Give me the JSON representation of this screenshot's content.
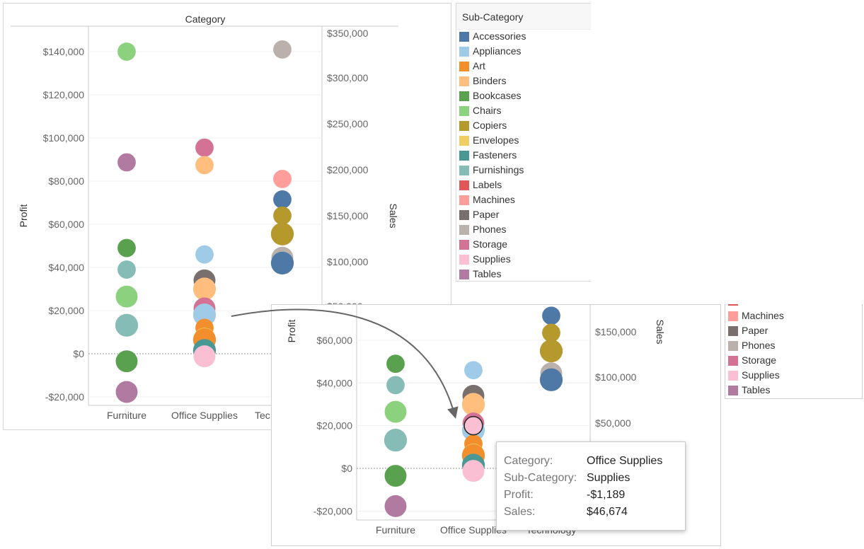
{
  "colors": {
    "Accessories": "#4e79a7",
    "Appliances": "#a0cbe8",
    "Art": "#f28e2b",
    "Binders": "#ffbe7d",
    "Bookcases": "#59a14f",
    "Chairs": "#8cd17d",
    "Copiers": "#b6992d",
    "Envelopes": "#f1ce63",
    "Fasteners": "#499894",
    "Furnishings": "#86bcb6",
    "Labels": "#e15759",
    "Machines": "#ff9d9a",
    "Paper": "#79706e",
    "Phones": "#bab0ac",
    "Storage": "#d37295",
    "Supplies": "#fabfd2",
    "Tables": "#b07aa1"
  },
  "legend": {
    "title": "Sub-Category",
    "items": [
      "Accessories",
      "Appliances",
      "Art",
      "Binders",
      "Bookcases",
      "Chairs",
      "Copiers",
      "Envelopes",
      "Fasteners",
      "Furnishings",
      "Labels",
      "Machines",
      "Paper",
      "Phones",
      "Storage",
      "Supplies",
      "Tables"
    ],
    "zoom_items": [
      "Machines",
      "Paper",
      "Phones",
      "Storage",
      "Supplies",
      "Tables"
    ]
  },
  "chart_data": [
    {
      "type": "scatter",
      "title": "Category",
      "ylabel": "Profit",
      "y2label": "Sales",
      "categories": [
        "Furniture",
        "Office Supplies",
        "Technology"
      ],
      "ylim": [
        -25000,
        150000
      ],
      "yticks": [
        -20000,
        0,
        20000,
        40000,
        60000,
        80000,
        100000,
        120000,
        140000
      ],
      "ytick_labels": [
        "-$20,000",
        "$0",
        "$20,000",
        "$40,000",
        "$60,000",
        "$80,000",
        "$100,000",
        "$120,000",
        "$140,000"
      ],
      "y2ticks": [
        100000,
        150000,
        200000,
        250000,
        300000,
        350000
      ],
      "y2tick_labels": [
        "$100,000",
        "$150,000",
        "$200,000",
        "$250,000",
        "$300,000",
        "$350,000"
      ],
      "y2_partial_label": "$50,000",
      "category_labels_shown": [
        "Furniture",
        "Office Supplies",
        "Tec"
      ],
      "points": [
        {
          "category": "Furniture",
          "sub": "Chairs",
          "profit": 140000,
          "size": 160
        },
        {
          "category": "Furniture",
          "sub": "Tables",
          "profit": 88700,
          "size": 160
        },
        {
          "category": "Furniture",
          "sub": "Bookcases",
          "profit": 49000,
          "size": 160
        },
        {
          "category": "Furniture",
          "sub": "Furnishings",
          "profit": 39000,
          "size": 160
        },
        {
          "category": "Furniture",
          "sub": "Chairs",
          "profit": 26500,
          "size": 230
        },
        {
          "category": "Furniture",
          "sub": "Furnishings",
          "profit": 13200,
          "size": 250
        },
        {
          "category": "Furniture",
          "sub": "Bookcases",
          "profit": -3500,
          "size": 230
        },
        {
          "category": "Furniture",
          "sub": "Tables",
          "profit": -17700,
          "size": 230
        },
        {
          "category": "Office Supplies",
          "sub": "Storage",
          "profit": 95500,
          "size": 160
        },
        {
          "category": "Office Supplies",
          "sub": "Binders",
          "profit": 87400,
          "size": 160
        },
        {
          "category": "Office Supplies",
          "sub": "Appliances",
          "profit": 46000,
          "size": 160
        },
        {
          "category": "Office Supplies",
          "sub": "Paper",
          "profit": 34000,
          "size": 230
        },
        {
          "category": "Office Supplies",
          "sub": "Binders",
          "profit": 30000,
          "size": 250
        },
        {
          "category": "Office Supplies",
          "sub": "Storage",
          "profit": 21000,
          "size": 230
        },
        {
          "category": "Office Supplies",
          "sub": "Appliances",
          "profit": 18000,
          "size": 250
        },
        {
          "category": "Office Supplies",
          "sub": "Art",
          "profit": 12000,
          "size": 160
        },
        {
          "category": "Office Supplies",
          "sub": "Envelopes",
          "profit": 7000,
          "size": 230
        },
        {
          "category": "Office Supplies",
          "sub": "Art",
          "profit": 6500,
          "size": 250
        },
        {
          "category": "Office Supplies",
          "sub": "Fasteners",
          "profit": 1500,
          "size": 250
        },
        {
          "category": "Office Supplies",
          "sub": "Supplies",
          "profit": -1189,
          "size": 230
        },
        {
          "category": "Technology",
          "sub": "Phones",
          "profit": 141000,
          "size": 160
        },
        {
          "category": "Technology",
          "sub": "Machines",
          "profit": 81000,
          "size": 160
        },
        {
          "category": "Technology",
          "sub": "Accessories",
          "profit": 71500,
          "size": 160
        },
        {
          "category": "Technology",
          "sub": "Copiers",
          "profit": 64000,
          "size": 160
        },
        {
          "category": "Technology",
          "sub": "Copiers",
          "profit": 55500,
          "size": 250
        },
        {
          "category": "Technology",
          "sub": "Phones",
          "profit": 44500,
          "size": 230
        },
        {
          "category": "Technology",
          "sub": "Accessories",
          "profit": 42000,
          "size": 250
        }
      ]
    },
    {
      "type": "scatter",
      "ylabel": "Profit",
      "y2label": "Sales",
      "categories": [
        "Furniture",
        "Office Supplies",
        "Technology"
      ],
      "ylim": [
        -25000,
        80000
      ],
      "yticks": [
        -20000,
        0,
        20000,
        40000,
        60000
      ],
      "ytick_labels": [
        "-$20,000",
        "$0",
        "$20,000",
        "$40,000",
        "$60,000"
      ],
      "y2tick_labels": [
        "$50,000",
        "$100,000",
        "$150,000"
      ],
      "points": [
        {
          "category": "Furniture",
          "sub": "Bookcases",
          "profit": 49000,
          "size": 160
        },
        {
          "category": "Furniture",
          "sub": "Furnishings",
          "profit": 39000,
          "size": 160
        },
        {
          "category": "Furniture",
          "sub": "Chairs",
          "profit": 26500,
          "size": 230
        },
        {
          "category": "Furniture",
          "sub": "Furnishings",
          "profit": 13200,
          "size": 250
        },
        {
          "category": "Furniture",
          "sub": "Bookcases",
          "profit": -3500,
          "size": 230
        },
        {
          "category": "Furniture",
          "sub": "Tables",
          "profit": -17700,
          "size": 230
        },
        {
          "category": "Office Supplies",
          "sub": "Appliances",
          "profit": 46000,
          "size": 160
        },
        {
          "category": "Office Supplies",
          "sub": "Paper",
          "profit": 34000,
          "size": 230
        },
        {
          "category": "Office Supplies",
          "sub": "Binders",
          "profit": 30000,
          "size": 250
        },
        {
          "category": "Office Supplies",
          "sub": "Storage",
          "profit": 21000,
          "size": 230
        },
        {
          "category": "Office Supplies",
          "sub": "Appliances",
          "profit": 18000,
          "size": 250
        },
        {
          "category": "Office Supplies",
          "sub": "Art",
          "profit": 11500,
          "size": 160
        },
        {
          "category": "Office Supplies",
          "sub": "Envelopes",
          "profit": 6500,
          "size": 230
        },
        {
          "category": "Office Supplies",
          "sub": "Art",
          "profit": 6000,
          "size": 250
        },
        {
          "category": "Office Supplies",
          "sub": "Fasteners",
          "profit": 1500,
          "size": 250
        },
        {
          "category": "Office Supplies",
          "sub": "Supplies",
          "profit": -1189,
          "size": 230
        },
        {
          "category": "Office Supplies",
          "sub": "Supplies",
          "profit": 20000,
          "size": 160,
          "highlight": true
        },
        {
          "category": "Technology",
          "sub": "Accessories",
          "profit": 71500,
          "size": 160
        },
        {
          "category": "Technology",
          "sub": "Copiers",
          "profit": 63500,
          "size": 160
        },
        {
          "category": "Technology",
          "sub": "Copiers",
          "profit": 55000,
          "size": 250
        },
        {
          "category": "Technology",
          "sub": "Phones",
          "profit": 44500,
          "size": 230
        },
        {
          "category": "Technology",
          "sub": "Accessories",
          "profit": 41500,
          "size": 250
        }
      ]
    }
  ],
  "tooltip": {
    "rows": [
      {
        "key": "Category:",
        "value": "Office Supplies"
      },
      {
        "key": "Sub-Category:",
        "value": "Supplies"
      },
      {
        "key": "Profit:",
        "value": "-$1,189"
      },
      {
        "key": "Sales:",
        "value": "$46,674"
      }
    ]
  }
}
